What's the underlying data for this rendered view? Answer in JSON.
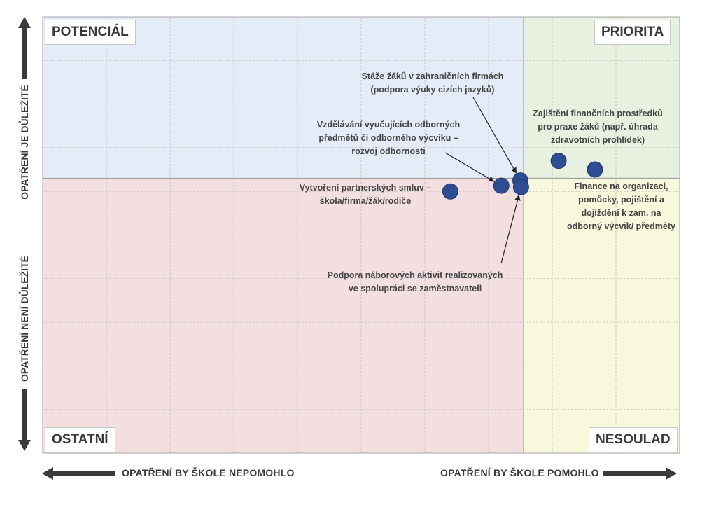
{
  "chart_data": {
    "type": "scatter",
    "quadrants": {
      "top_left": "POTENCIÁL",
      "top_right": "PRIORITA",
      "bottom_left": "OSTATNÍ",
      "bottom_right": "NESOULAD"
    },
    "axes": {
      "x_left": "OPATŘENÍ BY ŠKOLE NEPOMOHLO",
      "x_right": "OPATŘENÍ BY ŠKOLE POMOHLO",
      "y_top": "OPATŘENÍ JE DŮLEŽITÉ",
      "y_bottom": "OPATŘENÍ NENÍ DŮLEŽITÉ"
    },
    "xlim": [
      0,
      10
    ],
    "ylim": [
      0,
      10
    ],
    "x_divider": 7.55,
    "y_divider": 6.3,
    "grid": true,
    "colors": {
      "top_left": "#e4edf7",
      "top_right": "#e8f1e0",
      "bottom_left": "#f4dfe0",
      "bottom_right": "#f8f8dc",
      "point": "#2e4d93"
    },
    "points": [
      {
        "x": 8.1,
        "y": 6.7
      },
      {
        "x": 8.67,
        "y": 6.5
      },
      {
        "x": 7.5,
        "y": 6.25
      },
      {
        "x": 7.51,
        "y": 6.1
      },
      {
        "x": 7.2,
        "y": 6.13
      },
      {
        "x": 6.4,
        "y": 6.0
      }
    ],
    "annotations": [
      {
        "text": "Stáže žáků v zahraničních firmách\n(podpora výuky cizích jazyků)"
      },
      {
        "text": "Zajištění finančních prostředků\npro praxe žáků (např. úhrada\nzdravotních prohlídek)"
      },
      {
        "text": "Vzdělávání vyučujících odborných\npředmětů či odborného výcviku –\nrozvoj odbornosti"
      },
      {
        "text": "Vytvoření partnerských smluv –\nškola/firma/žák/rodiče"
      },
      {
        "text": "Finance na organizaci,\npomůcky, pojištění a\ndojíždění k zam. na\nodborný výcvik/ předměty"
      },
      {
        "text": "Podpora náborových aktivit realizovaných\nve spolupráci se zaměstnavateli"
      }
    ]
  }
}
